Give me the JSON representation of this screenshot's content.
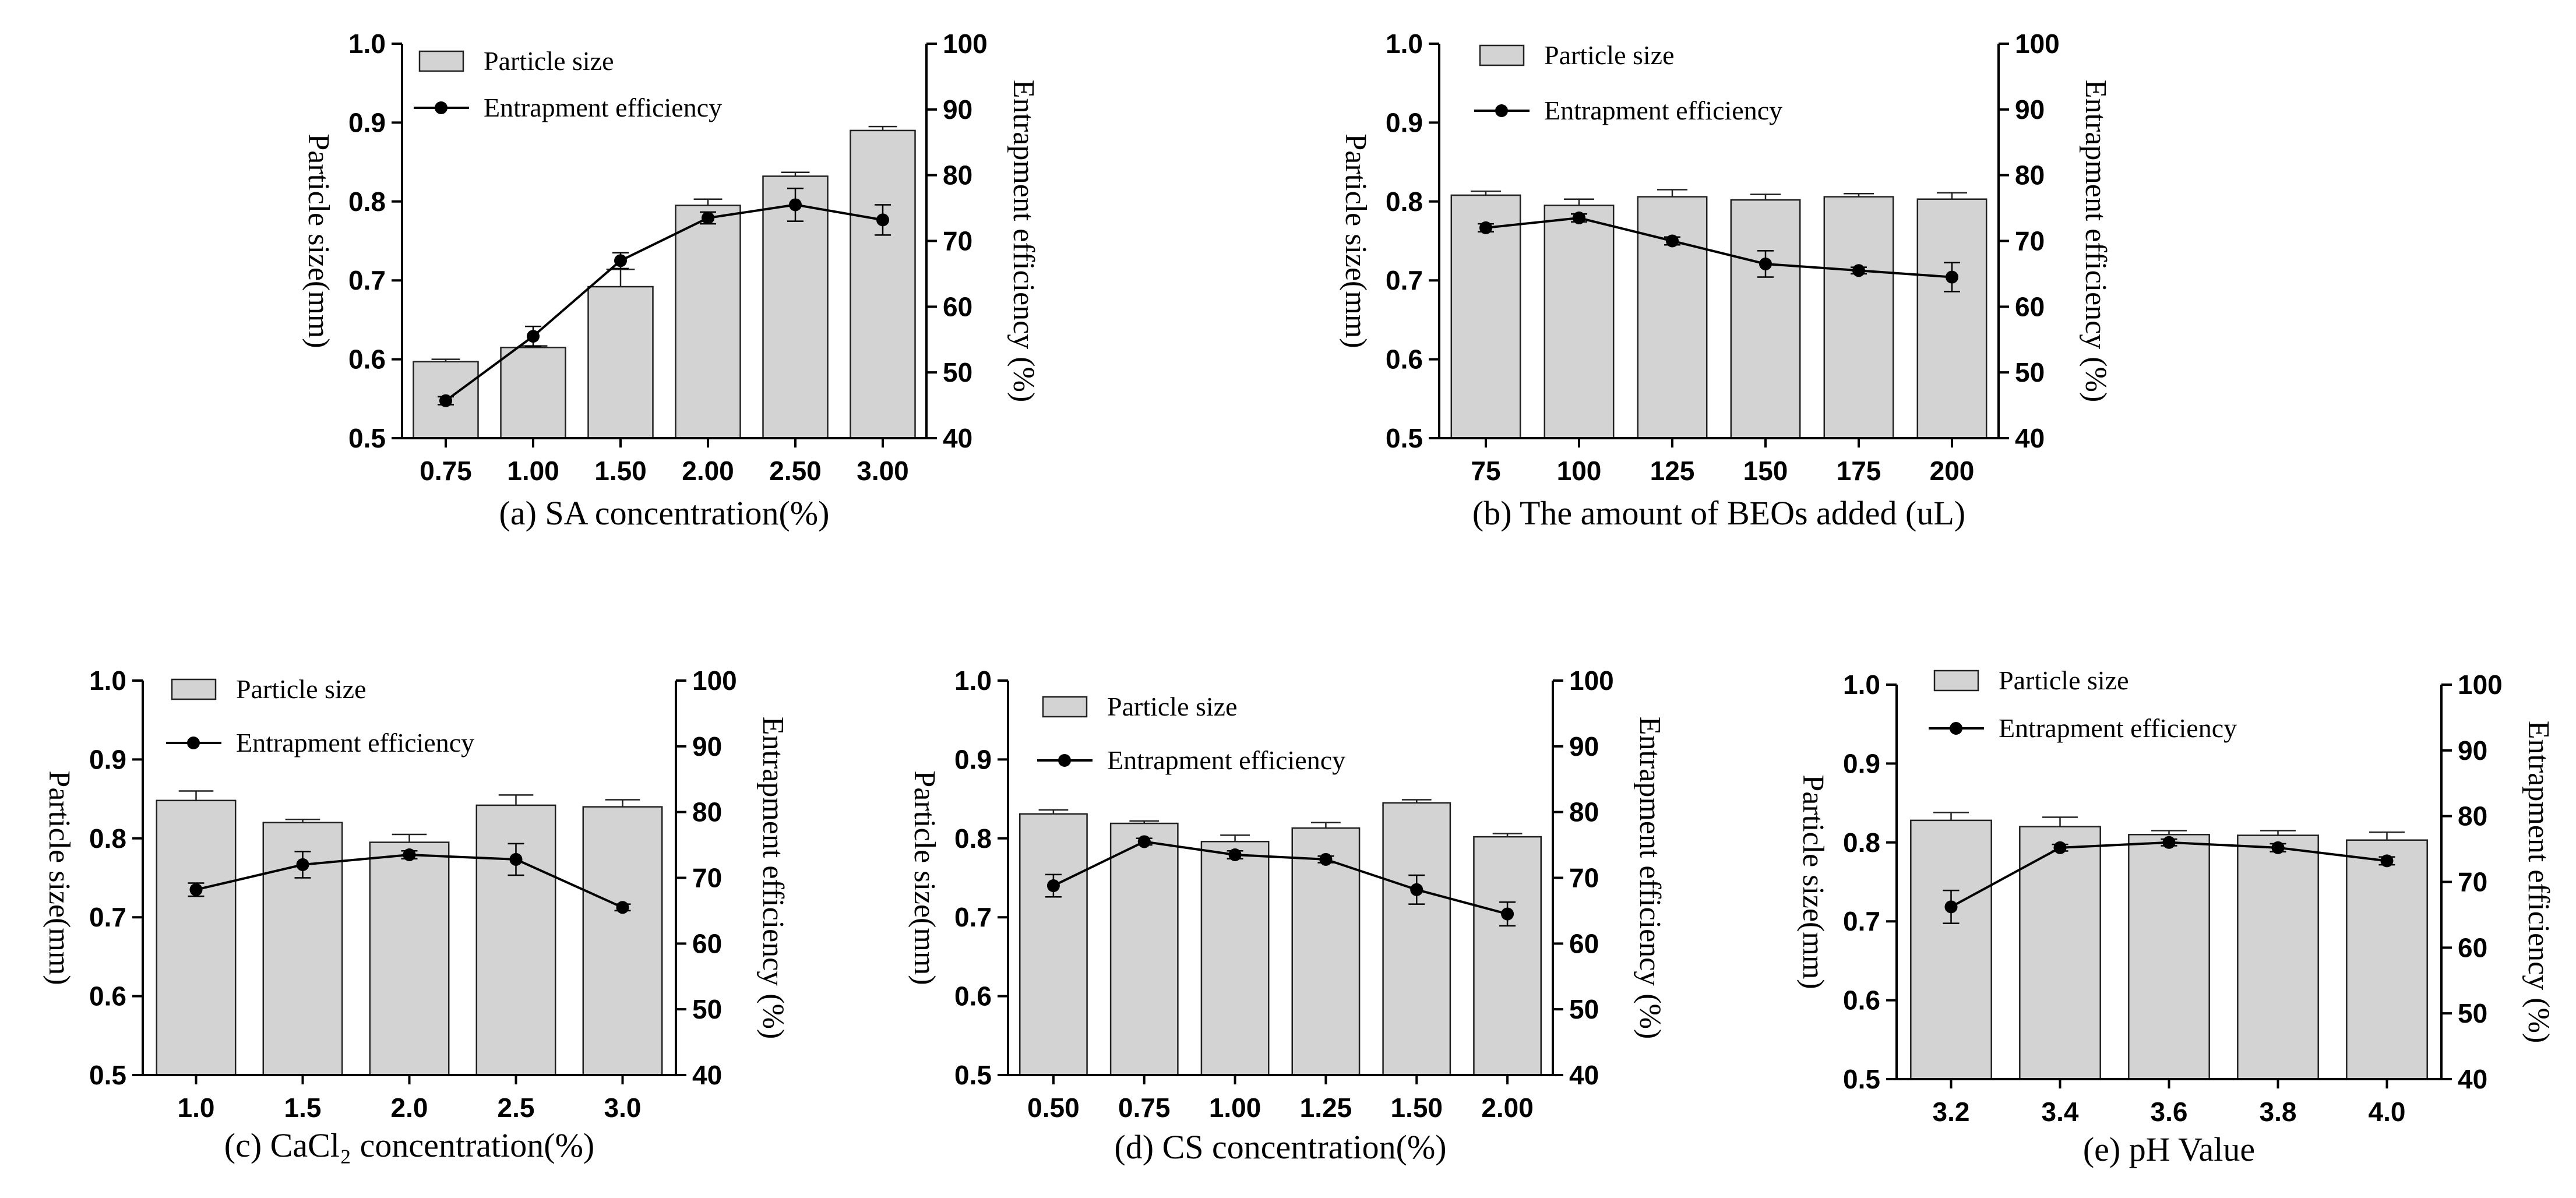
{
  "figure": {
    "legend_labels": {
      "bar": "Particle size",
      "line": "Entrapment efficiency"
    },
    "colors": {
      "bar_fill": "#d3d3d3",
      "bar_stroke": "#222222",
      "line": "#000000",
      "axis": "#000000"
    }
  },
  "chart_data": [
    {
      "id": "a",
      "type": "bar",
      "caption_prefix": "(a)",
      "caption_text": "SA concentration(%)",
      "categories": [
        "0.75",
        "1.00",
        "1.50",
        "2.00",
        "2.50",
        "3.00"
      ],
      "series": [
        {
          "name": "Particle size",
          "type": "bar",
          "axis": "left",
          "values": [
            0.597,
            0.615,
            0.692,
            0.795,
            0.832,
            0.89
          ],
          "errors": [
            0.003,
            0.002,
            0.022,
            0.008,
            0.005,
            0.005
          ]
        },
        {
          "name": "Entrapment efficiency",
          "type": "line",
          "axis": "right",
          "values": [
            45.7,
            55.5,
            67.0,
            73.5,
            75.5,
            73.2
          ],
          "errors": [
            0.6,
            1.5,
            1.2,
            0.9,
            2.5,
            2.3
          ]
        }
      ],
      "ylabel_left": "Particle size(mm)",
      "ylabel_right": "Entrapment efficiency (%)",
      "ylim_left": [
        0.5,
        1.0
      ],
      "ylim_right": [
        40,
        100
      ],
      "yticks_left": [
        "0.5",
        "0.6",
        "0.7",
        "0.8",
        "0.9",
        "1.0"
      ],
      "yticks_right": [
        "40",
        "50",
        "60",
        "70",
        "80",
        "90",
        "100"
      ],
      "legend_position": "top-left"
    },
    {
      "id": "b",
      "type": "bar",
      "caption_prefix": "(b)",
      "caption_text": "The amount of BEOs added (uL)",
      "categories": [
        "75",
        "100",
        "125",
        "150",
        "175",
        "200"
      ],
      "series": [
        {
          "name": "Particle size",
          "type": "bar",
          "axis": "left",
          "values": [
            0.808,
            0.795,
            0.806,
            0.802,
            0.806,
            0.803
          ],
          "errors": [
            0.005,
            0.008,
            0.009,
            0.007,
            0.004,
            0.008
          ]
        },
        {
          "name": "Entrapment efficiency",
          "type": "line",
          "axis": "right",
          "values": [
            72.0,
            73.5,
            70.0,
            66.5,
            65.5,
            64.5
          ],
          "errors": [
            0.6,
            0.6,
            0.6,
            2.0,
            0.5,
            2.2
          ]
        }
      ],
      "ylabel_left": "Particle size(mm)",
      "ylabel_right": "Entrapment efficiency (%)",
      "ylim_left": [
        0.5,
        1.0
      ],
      "ylim_right": [
        40,
        100
      ],
      "yticks_left": [
        "0.5",
        "0.6",
        "0.7",
        "0.8",
        "0.9",
        "1.0"
      ],
      "yticks_right": [
        "40",
        "50",
        "60",
        "70",
        "80",
        "90",
        "100"
      ],
      "legend_position": "top-left"
    },
    {
      "id": "c",
      "type": "bar",
      "caption_prefix": "(c)",
      "caption_text": "CaCl₂ concentration(%)",
      "categories": [
        "1.0",
        "1.5",
        "2.0",
        "2.5",
        "3.0"
      ],
      "series": [
        {
          "name": "Particle size",
          "type": "bar",
          "axis": "left",
          "values": [
            0.848,
            0.82,
            0.795,
            0.842,
            0.84
          ],
          "errors": [
            0.012,
            0.004,
            0.01,
            0.013,
            0.009
          ]
        },
        {
          "name": "Entrapment efficiency",
          "type": "line",
          "axis": "right",
          "values": [
            68.2,
            72.0,
            73.5,
            72.8,
            65.5
          ],
          "errors": [
            1.0,
            2.0,
            0.6,
            2.4,
            0.5
          ]
        }
      ],
      "ylabel_left": "Particle size(mm)",
      "ylabel_right": "Entrapment efficiency (%)",
      "ylim_left": [
        0.5,
        1.0
      ],
      "ylim_right": [
        40,
        100
      ],
      "yticks_left": [
        "0.5",
        "0.6",
        "0.7",
        "0.8",
        "0.9",
        "1.0"
      ],
      "yticks_right": [
        "40",
        "50",
        "60",
        "70",
        "80",
        "90",
        "100"
      ],
      "legend_position": "top-left"
    },
    {
      "id": "d",
      "type": "bar",
      "caption_prefix": "(d)",
      "caption_text": "CS concentration(%)",
      "categories": [
        "0.50",
        "0.75",
        "1.00",
        "1.25",
        "1.50",
        "2.00"
      ],
      "series": [
        {
          "name": "Particle size",
          "type": "bar",
          "axis": "left",
          "values": [
            0.831,
            0.819,
            0.796,
            0.813,
            0.845,
            0.802
          ],
          "errors": [
            0.005,
            0.003,
            0.008,
            0.007,
            0.004,
            0.004
          ]
        },
        {
          "name": "Entrapment efficiency",
          "type": "line",
          "axis": "right",
          "values": [
            68.8,
            75.5,
            73.5,
            72.8,
            68.2,
            64.5
          ],
          "errors": [
            1.7,
            0.5,
            0.6,
            0.5,
            2.2,
            1.8
          ]
        }
      ],
      "ylabel_left": "Particle size(mm)",
      "ylabel_right": "Entrapment efficiency (%)",
      "ylim_left": [
        0.5,
        1.0
      ],
      "ylim_right": [
        40,
        100
      ],
      "yticks_left": [
        "0.5",
        "0.6",
        "0.7",
        "0.8",
        "0.9",
        "1.0"
      ],
      "yticks_right": [
        "40",
        "50",
        "60",
        "70",
        "80",
        "90",
        "100"
      ],
      "legend_position": "top-left"
    },
    {
      "id": "e",
      "type": "bar",
      "caption_prefix": "(e)",
      "caption_text": "pH Value",
      "categories": [
        "3.2",
        "3.4",
        "3.6",
        "3.8",
        "4.0"
      ],
      "series": [
        {
          "name": "Particle size",
          "type": "bar",
          "axis": "left",
          "values": [
            0.828,
            0.82,
            0.81,
            0.809,
            0.803
          ],
          "errors": [
            0.01,
            0.012,
            0.005,
            0.006,
            0.01
          ]
        },
        {
          "name": "Entrapment efficiency",
          "type": "line",
          "axis": "right",
          "values": [
            66.2,
            75.2,
            76.0,
            75.2,
            73.2
          ],
          "errors": [
            2.5,
            0.5,
            0.5,
            0.6,
            0.6
          ]
        }
      ],
      "ylabel_left": "Particle size(mm)",
      "ylabel_right": "Entrapment efficiency (%)",
      "ylim_left": [
        0.5,
        1.0
      ],
      "ylim_right": [
        40,
        100
      ],
      "yticks_left": [
        "0.5",
        "0.6",
        "0.7",
        "0.8",
        "0.9",
        "1.0"
      ],
      "yticks_right": [
        "40",
        "50",
        "60",
        "70",
        "80",
        "90",
        "100"
      ],
      "legend_position": "top-left"
    }
  ]
}
